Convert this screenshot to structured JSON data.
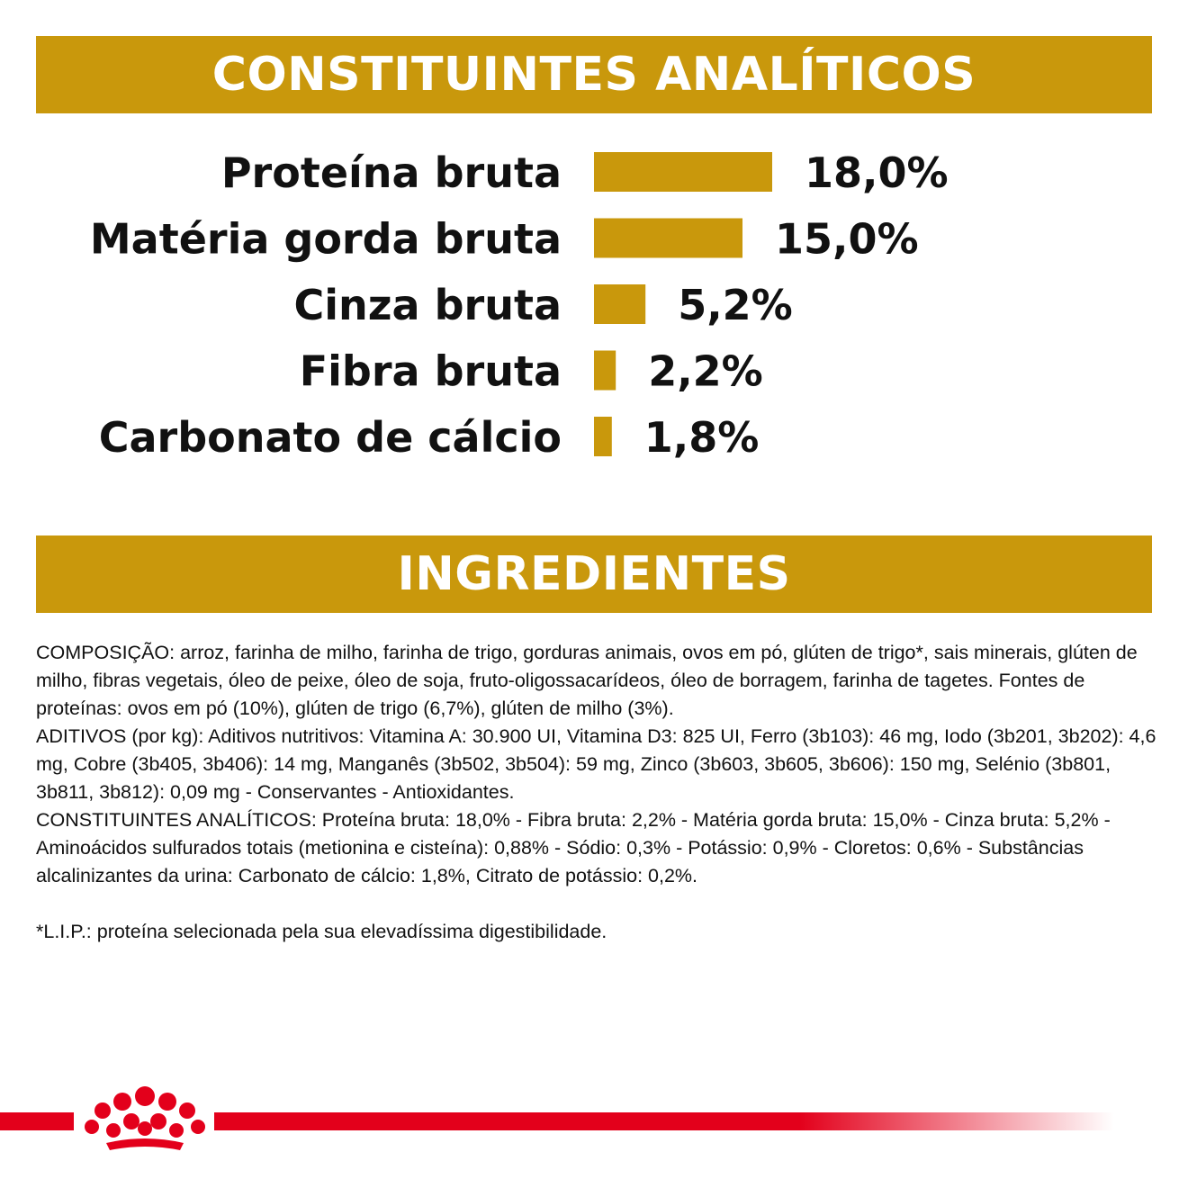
{
  "analytical": {
    "title": "CONSTITUINTES ANALÍTICOS"
  },
  "chart_data": {
    "type": "bar",
    "orientation": "horizontal",
    "categories": [
      "Proteína bruta",
      "Matéria gorda bruta",
      "Cinza bruta",
      "Fibra bruta",
      "Carbonato de cálcio"
    ],
    "values": [
      18.0,
      15.0,
      5.2,
      2.2,
      1.8
    ],
    "value_labels": [
      "18,0%",
      "15,0%",
      "5,2%",
      "2,2%",
      "1,8%"
    ],
    "bar_color": "#c9980c"
  },
  "ingredients": {
    "title": "INGREDIENTES",
    "paragraphs": [
      "COMPOSIÇÃO: arroz, farinha de milho, farinha de trigo, gorduras animais, ovos em pó, glúten de trigo*, sais minerais, glúten de milho, fibras vegetais, óleo de peixe, óleo de soja, fruto-oligossacarídeos, óleo de borragem, farinha de tagetes. Fontes de proteínas: ovos em pó (10%), glúten de trigo (6,7%), glúten de milho (3%).",
      "ADITIVOS (por kg): Aditivos nutritivos: Vitamina A: 30.900 UI, Vitamina D3: 825 UI, Ferro (3b103): 46 mg, Iodo (3b201, 3b202): 4,6 mg, Cobre (3b405, 3b406): 14 mg, Manganês (3b502, 3b504): 59 mg, Zinco (3b603, 3b605, 3b606): 150 mg, Selénio (3b801, 3b811, 3b812): 0,09 mg - Conservantes - Antioxidantes.",
      "CONSTITUINTES ANALÍTICOS: Proteína bruta: 18,0% - Fibra bruta: 2,2% - Matéria gorda bruta: 15,0% - Cinza bruta: 5,2% - Aminoácidos sulfurados totais (metionina e cisteína): 0,88% - Sódio: 0,3% - Potássio: 0,9% - Cloretos: 0,6% - Substâncias alcalinizantes da urina: Carbonato de cálcio: 1,8%, Citrato de potássio: 0,2%."
    ],
    "footnote": "*L.I.P.: proteína selecionada pela sua elevadíssima digestibilidade."
  },
  "brand": {
    "logo_icon": "crown-icon",
    "accent_color": "#e3001b"
  }
}
